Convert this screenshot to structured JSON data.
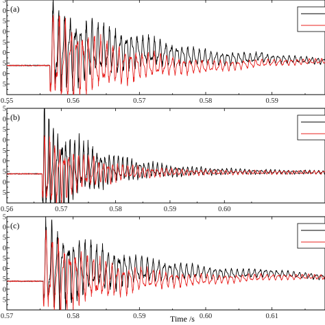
{
  "chart_data": [
    {
      "type": "line",
      "panel_label": "(a)",
      "xlim": [
        0.55,
        0.598
      ],
      "ylim": [
        -20,
        45
      ],
      "xticks": [
        0.55,
        0.56,
        0.57,
        0.58,
        0.59
      ],
      "xtick_labels": [
        "0.55",
        "0.56",
        "0.57",
        "0.58",
        "0.59"
      ],
      "ytick_labels": [
        "",
        "5",
        "0",
        "5",
        "0",
        "5",
        "0",
        "5",
        "0",
        "5"
      ],
      "xlabel": "",
      "legend": "top-right",
      "series": [
        {
          "color": "#000000",
          "onset": 0.5565,
          "peak": 32,
          "decay": 0.012,
          "period": 0.00085,
          "drift": [
            [
              0.5565,
              10
            ],
            [
              0.57,
              10
            ],
            [
              0.58,
              5
            ],
            [
              0.5875,
              5
            ],
            [
              0.588,
              7
            ],
            [
              0.589,
              5
            ],
            [
              0.598,
              3
            ]
          ]
        },
        {
          "color": "#e8201e",
          "onset": 0.5565,
          "peak": 34,
          "decay": 0.01,
          "period": 0.0009,
          "drift": [
            [
              0.5565,
              5
            ],
            [
              0.565,
              0
            ],
            [
              0.575,
              0
            ],
            [
              0.58,
              -1
            ],
            [
              0.59,
              2
            ],
            [
              0.598,
              3
            ]
          ]
        }
      ]
    },
    {
      "type": "line",
      "panel_label": "(b)",
      "xlim": [
        0.56,
        0.6185
      ],
      "ylim": [
        -20,
        45
      ],
      "xticks": [
        0.56,
        0.57,
        0.58,
        0.59,
        0.6
      ],
      "xtick_labels": [
        "0.56",
        "0.57",
        "0.58",
        "0.59",
        "0.60"
      ],
      "ytick_labels": [
        "",
        "5",
        "0",
        "5",
        "0",
        "5",
        "0",
        "5",
        "0",
        "5"
      ],
      "xlabel": "",
      "legend": "top-right",
      "series": [
        {
          "color": "#000000",
          "onset": 0.5665,
          "peak": 40,
          "decay": 0.009,
          "period": 0.0008,
          "drift": [
            [
              0.5665,
              2
            ],
            [
              0.575,
              4
            ],
            [
              0.59,
              2
            ],
            [
              0.6185,
              1
            ]
          ]
        },
        {
          "color": "#e8201e",
          "onset": 0.5665,
          "peak": 28,
          "decay": 0.008,
          "period": 0.0009,
          "drift": [
            [
              0.5665,
              0
            ],
            [
              0.575,
              1
            ],
            [
              0.6185,
              1
            ]
          ]
        }
      ]
    },
    {
      "type": "line",
      "panel_label": "(c)",
      "xlim": [
        0.57,
        0.618
      ],
      "ylim": [
        -20,
        45
      ],
      "xticks": [
        0.57,
        0.58,
        0.59,
        0.6,
        0.61
      ],
      "xtick_labels": [
        "0.57",
        "0.58",
        "0.59",
        "0.60",
        "0.61"
      ],
      "ytick_labels": [
        "",
        "5",
        "0",
        "5",
        "0",
        "5",
        "0",
        "5",
        "0",
        "5"
      ],
      "xlabel": "Time /s",
      "legend": "top-right",
      "series": [
        {
          "color": "#000000",
          "onset": 0.5755,
          "peak": 32,
          "decay": 0.011,
          "period": 0.00085,
          "drift": [
            [
              0.5755,
              10
            ],
            [
              0.59,
              8
            ],
            [
              0.605,
              5
            ],
            [
              0.609,
              6
            ],
            [
              0.618,
              3
            ]
          ]
        },
        {
          "color": "#e8201e",
          "onset": 0.5755,
          "peak": 30,
          "decay": 0.01,
          "period": 0.0009,
          "drift": [
            [
              0.5755,
              5
            ],
            [
              0.585,
              1
            ],
            [
              0.6,
              1
            ],
            [
              0.61,
              3
            ],
            [
              0.618,
              3
            ]
          ]
        }
      ]
    }
  ]
}
